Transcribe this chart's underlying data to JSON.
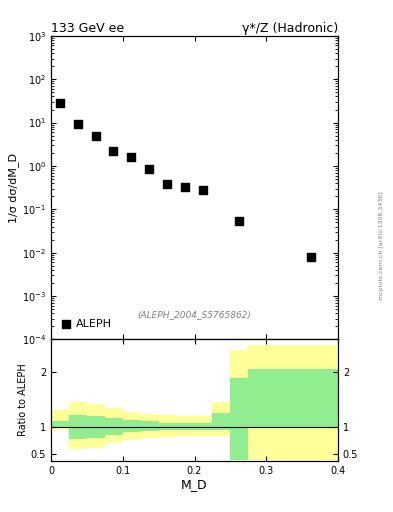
{
  "title_left": "133 GeV ee",
  "title_right": "γ*/Z (Hadronic)",
  "ylabel_main": "1/σ dσ/dM_D",
  "ylabel_ratio": "Ratio to ALEPH",
  "xlabel": "M_D",
  "watermark": "(ALEPH_2004_S5765862)",
  "legend_label": "ALEPH",
  "data_x": [
    0.012,
    0.037,
    0.062,
    0.087,
    0.112,
    0.137,
    0.162,
    0.187,
    0.212,
    0.262,
    0.362
  ],
  "data_y": [
    28.0,
    9.5,
    5.0,
    2.2,
    1.6,
    0.85,
    0.38,
    0.32,
    0.28,
    0.055,
    0.008
  ],
  "ylim_main": [
    0.0001,
    1000.0
  ],
  "xlim": [
    0.0,
    0.4
  ],
  "ylim_ratio": [
    0.38,
    2.6
  ],
  "ratio_yticks": [
    0.5,
    1.0,
    2.0
  ],
  "bin_edges": [
    0.0,
    0.025,
    0.05,
    0.075,
    0.1,
    0.125,
    0.15,
    0.175,
    0.2,
    0.225,
    0.25,
    0.275,
    0.325,
    0.4
  ],
  "yellow_lo": [
    0.95,
    0.6,
    0.62,
    0.7,
    0.76,
    0.8,
    0.82,
    0.84,
    0.84,
    0.84,
    0.4,
    0.4,
    0.4
  ],
  "yellow_hi": [
    1.3,
    1.45,
    1.42,
    1.35,
    1.28,
    1.24,
    1.22,
    1.2,
    1.2,
    1.45,
    2.4,
    2.5,
    2.5
  ],
  "green_lo": [
    1.0,
    0.78,
    0.8,
    0.86,
    0.9,
    0.92,
    0.94,
    0.94,
    0.94,
    0.94,
    0.4,
    1.0,
    1.0
  ],
  "green_hi": [
    1.1,
    1.22,
    1.2,
    1.16,
    1.12,
    1.1,
    1.08,
    1.08,
    1.08,
    1.25,
    1.9,
    2.05,
    2.05
  ],
  "marker_color": "black",
  "marker_size": 6,
  "green_color": "#90EE90",
  "yellow_color": "#FFFF99",
  "bg_color": "#ffffff",
  "side_text": "mcplots.cern.ch [arXiv:1306.3436]"
}
